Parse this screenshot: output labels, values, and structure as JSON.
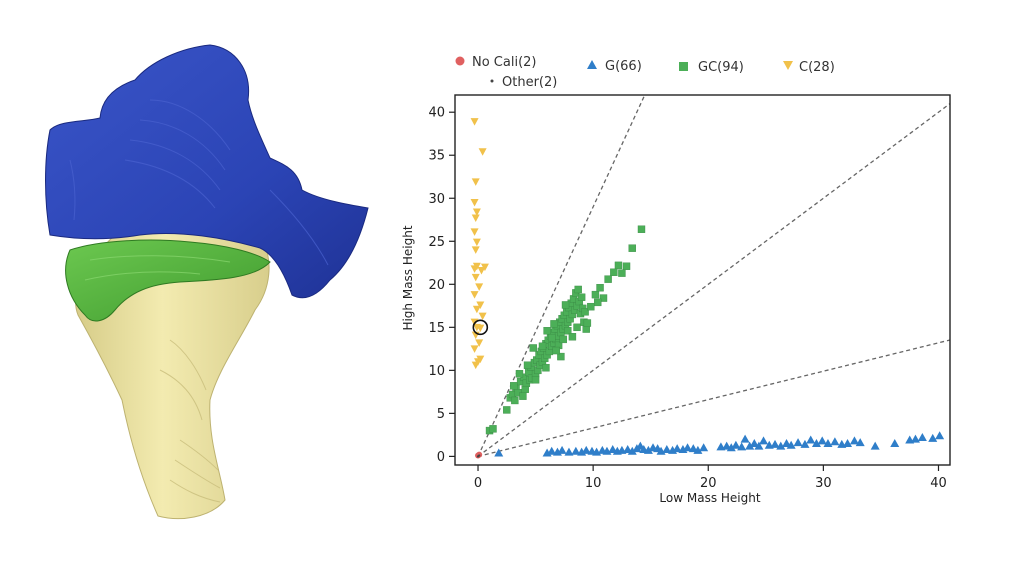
{
  "colors": {
    "no_cali": "#e06060",
    "g": "#2f7ec9",
    "gc": "#4caf58",
    "c": "#f1c14a",
    "tissue_blue": "#2b44b5",
    "tissue_green": "#4caf38",
    "tissue_yellow": "#efe6a0",
    "diagonal": "#666666"
  },
  "chart_data": {
    "type": "scatter",
    "xlabel": "Low Mass Height",
    "ylabel": "High Mass Height",
    "xlim": [
      -2,
      41
    ],
    "ylim": [
      -1,
      42
    ],
    "xticks": [
      0,
      10,
      20,
      30,
      40
    ],
    "yticks": [
      0,
      5,
      10,
      15,
      20,
      25,
      30,
      35,
      40
    ],
    "legend": {
      "position": "top",
      "entries": [
        "No Cali(2)",
        "G(66)",
        "GC(94)",
        "C(28)",
        "Other(2)"
      ]
    },
    "reference_lines": [
      {
        "slope": 2.9
      },
      {
        "slope": 1.0
      },
      {
        "slope": 0.33
      }
    ],
    "highlight_point": [
      0.2,
      15
    ],
    "series": [
      {
        "name": "No Cali(2)",
        "marker": "circle",
        "points": [
          [
            0.0,
            0.1
          ],
          [
            0.1,
            0.2
          ]
        ]
      },
      {
        "name": "G(66)",
        "marker": "triangle-up",
        "points": [
          [
            1.8,
            0.4
          ],
          [
            6.0,
            0.4
          ],
          [
            6.4,
            0.6
          ],
          [
            6.9,
            0.5
          ],
          [
            7.3,
            0.7
          ],
          [
            7.9,
            0.5
          ],
          [
            8.5,
            0.6
          ],
          [
            9.0,
            0.5
          ],
          [
            9.4,
            0.7
          ],
          [
            9.9,
            0.6
          ],
          [
            10.3,
            0.5
          ],
          [
            10.8,
            0.7
          ],
          [
            11.2,
            0.6
          ],
          [
            11.7,
            0.8
          ],
          [
            12.1,
            0.6
          ],
          [
            12.5,
            0.7
          ],
          [
            13.0,
            0.8
          ],
          [
            13.4,
            0.6
          ],
          [
            13.8,
            0.9
          ],
          [
            14.1,
            1.2
          ],
          [
            14.4,
            0.8
          ],
          [
            14.8,
            0.7
          ],
          [
            15.2,
            1.0
          ],
          [
            15.6,
            0.9
          ],
          [
            15.9,
            0.6
          ],
          [
            16.4,
            0.8
          ],
          [
            16.9,
            0.7
          ],
          [
            17.3,
            0.9
          ],
          [
            17.8,
            0.8
          ],
          [
            18.2,
            1.0
          ],
          [
            18.7,
            0.9
          ],
          [
            19.1,
            0.7
          ],
          [
            19.6,
            1.0
          ],
          [
            21.1,
            1.1
          ],
          [
            21.6,
            1.2
          ],
          [
            22.0,
            1.0
          ],
          [
            22.4,
            1.3
          ],
          [
            22.9,
            1.1
          ],
          [
            23.2,
            2.0
          ],
          [
            23.6,
            1.2
          ],
          [
            24.0,
            1.5
          ],
          [
            24.4,
            1.2
          ],
          [
            24.8,
            1.8
          ],
          [
            25.3,
            1.3
          ],
          [
            25.8,
            1.4
          ],
          [
            26.3,
            1.2
          ],
          [
            26.8,
            1.5
          ],
          [
            27.2,
            1.3
          ],
          [
            27.8,
            1.6
          ],
          [
            28.4,
            1.4
          ],
          [
            28.9,
            1.9
          ],
          [
            29.4,
            1.5
          ],
          [
            29.9,
            1.8
          ],
          [
            30.4,
            1.5
          ],
          [
            31.0,
            1.7
          ],
          [
            31.6,
            1.4
          ],
          [
            32.1,
            1.5
          ],
          [
            32.7,
            1.8
          ],
          [
            33.2,
            1.6
          ],
          [
            34.5,
            1.2
          ],
          [
            36.2,
            1.5
          ],
          [
            37.5,
            1.9
          ],
          [
            38.0,
            2.0
          ],
          [
            38.6,
            2.2
          ],
          [
            39.5,
            2.1
          ],
          [
            40.1,
            2.4
          ]
        ]
      },
      {
        "name": "GC(94)",
        "marker": "square",
        "points": [
          [
            1.0,
            3.0
          ],
          [
            1.3,
            3.2
          ],
          [
            2.5,
            5.4
          ],
          [
            2.8,
            6.8
          ],
          [
            3.0,
            7.2
          ],
          [
            3.2,
            6.5
          ],
          [
            3.3,
            8.0
          ],
          [
            3.5,
            7.4
          ],
          [
            3.7,
            8.7
          ],
          [
            3.9,
            7.0
          ],
          [
            4.0,
            9.2
          ],
          [
            4.1,
            7.8
          ],
          [
            4.2,
            8.5
          ],
          [
            4.4,
            9.8
          ],
          [
            4.5,
            8.9
          ],
          [
            4.6,
            10.4
          ],
          [
            4.7,
            9.1
          ],
          [
            4.9,
            10.9
          ],
          [
            5.0,
            9.6
          ],
          [
            5.1,
            11.2
          ],
          [
            5.2,
            10.0
          ],
          [
            5.3,
            11.8
          ],
          [
            5.4,
            10.6
          ],
          [
            5.5,
            12.2
          ],
          [
            5.6,
            11.0
          ],
          [
            5.7,
            12.6
          ],
          [
            5.8,
            11.4
          ],
          [
            5.9,
            13.1
          ],
          [
            6.0,
            11.8
          ],
          [
            6.1,
            13.5
          ],
          [
            6.2,
            12.2
          ],
          [
            6.3,
            14.0
          ],
          [
            6.4,
            12.8
          ],
          [
            6.5,
            14.4
          ],
          [
            6.6,
            13.2
          ],
          [
            6.7,
            14.8
          ],
          [
            6.8,
            13.6
          ],
          [
            6.9,
            15.2
          ],
          [
            7.0,
            14.0
          ],
          [
            7.1,
            15.6
          ],
          [
            7.2,
            14.4
          ],
          [
            7.3,
            16.0
          ],
          [
            7.4,
            14.8
          ],
          [
            7.5,
            16.4
          ],
          [
            7.6,
            15.2
          ],
          [
            7.7,
            16.8
          ],
          [
            7.8,
            15.6
          ],
          [
            7.9,
            17.3
          ],
          [
            8.0,
            16.0
          ],
          [
            8.1,
            17.8
          ],
          [
            8.2,
            16.5
          ],
          [
            8.3,
            18.3
          ],
          [
            8.4,
            17.0
          ],
          [
            8.5,
            19.0
          ],
          [
            8.6,
            17.5
          ],
          [
            8.7,
            19.4
          ],
          [
            8.8,
            18.0
          ],
          [
            8.9,
            16.6
          ],
          [
            9.0,
            18.5
          ],
          [
            9.1,
            17.2
          ],
          [
            9.2,
            15.6
          ],
          [
            9.3,
            16.8
          ],
          [
            9.4,
            14.8
          ],
          [
            9.5,
            15.5
          ],
          [
            5.6,
            12.8
          ],
          [
            6.0,
            14.6
          ],
          [
            6.4,
            13.8
          ],
          [
            7.0,
            12.9
          ],
          [
            7.4,
            13.6
          ],
          [
            7.8,
            14.6
          ],
          [
            4.3,
            10.6
          ],
          [
            3.6,
            9.6
          ],
          [
            3.1,
            8.2
          ],
          [
            8.2,
            13.9
          ],
          [
            8.6,
            15.0
          ],
          [
            7.6,
            17.6
          ],
          [
            6.6,
            15.4
          ],
          [
            10.2,
            18.8
          ],
          [
            10.6,
            19.6
          ],
          [
            10.9,
            18.4
          ],
          [
            11.3,
            20.6
          ],
          [
            11.8,
            21.4
          ],
          [
            12.2,
            22.2
          ],
          [
            12.5,
            21.3
          ],
          [
            12.9,
            22.1
          ],
          [
            13.4,
            24.2
          ],
          [
            14.2,
            26.4
          ],
          [
            9.8,
            17.4
          ],
          [
            10.4,
            17.9
          ],
          [
            7.2,
            11.6
          ],
          [
            6.8,
            12.3
          ],
          [
            5.9,
            10.3
          ],
          [
            5.0,
            8.9
          ],
          [
            4.8,
            12.6
          ]
        ]
      },
      {
        "name": "C(28)",
        "marker": "triangle-down",
        "points": [
          [
            -0.3,
            38.9
          ],
          [
            0.4,
            35.4
          ],
          [
            -0.2,
            31.9
          ],
          [
            -0.3,
            29.5
          ],
          [
            -0.1,
            28.4
          ],
          [
            -0.2,
            27.7
          ],
          [
            -0.3,
            26.1
          ],
          [
            -0.1,
            24.9
          ],
          [
            -0.2,
            24.0
          ],
          [
            -0.3,
            21.8
          ],
          [
            -0.1,
            22.1
          ],
          [
            0.3,
            21.6
          ],
          [
            0.6,
            22.0
          ],
          [
            -0.2,
            20.8
          ],
          [
            0.1,
            19.7
          ],
          [
            -0.3,
            18.8
          ],
          [
            0.2,
            17.6
          ],
          [
            -0.1,
            17.1
          ],
          [
            0.4,
            16.3
          ],
          [
            -0.3,
            15.6
          ],
          [
            -0.1,
            15.0
          ],
          [
            0.2,
            14.9
          ],
          [
            -0.2,
            14.1
          ],
          [
            0.1,
            13.2
          ],
          [
            -0.3,
            12.5
          ],
          [
            0.0,
            11.0
          ],
          [
            -0.2,
            10.6
          ],
          [
            0.2,
            11.3
          ]
        ]
      },
      {
        "name": "Other(2)",
        "marker": "dot",
        "points": [
          [
            0.0,
            0.0
          ],
          [
            0.1,
            0.1
          ]
        ]
      }
    ]
  }
}
